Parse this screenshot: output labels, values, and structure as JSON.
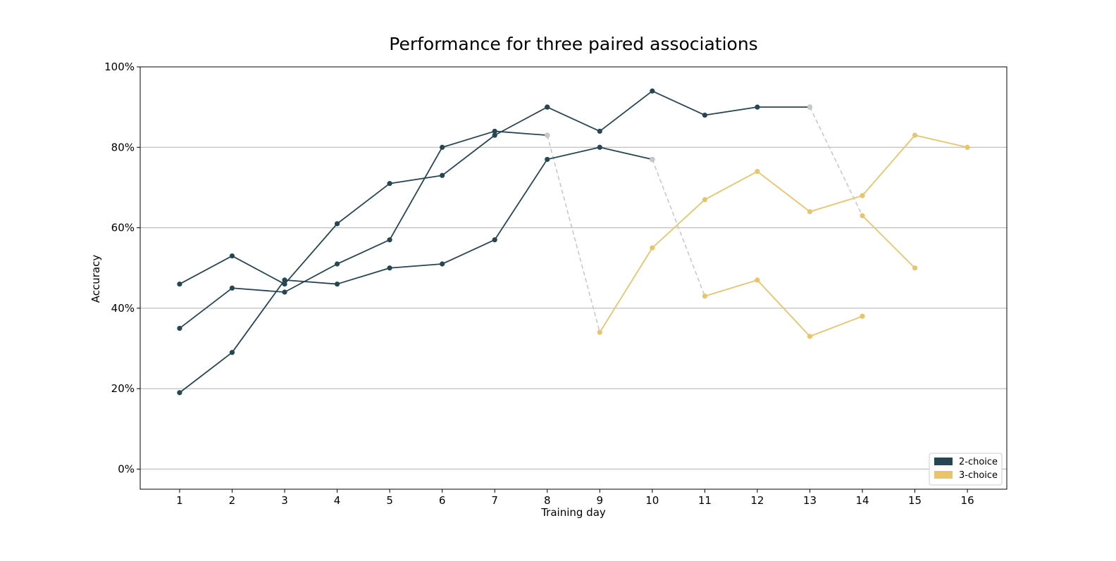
{
  "chart_data": {
    "type": "line",
    "title": "Performance for three paired associations",
    "xlabel": "Training day",
    "ylabel": "Accuracy",
    "xlim": [
      0.25,
      16.75
    ],
    "ylim": [
      -0.05,
      1.0
    ],
    "x_ticks": [
      1,
      2,
      3,
      4,
      5,
      6,
      7,
      8,
      9,
      10,
      11,
      12,
      13,
      14,
      15,
      16
    ],
    "x_tick_labels": [
      "1",
      "2",
      "3",
      "4",
      "5",
      "6",
      "7",
      "8",
      "9",
      "10",
      "11",
      "12",
      "13",
      "14",
      "15",
      "16"
    ],
    "y_ticks": [
      0,
      0.2,
      0.4,
      0.6,
      0.8,
      1.0
    ],
    "y_tick_labels": [
      "0%",
      "20%",
      "40%",
      "60%",
      "80%",
      "100%"
    ],
    "grid": "horizontal",
    "legend": {
      "position": "lower-right",
      "entries": [
        {
          "label": "2-choice",
          "color": "#264653"
        },
        {
          "label": "3-choice",
          "color": "#e9c46a"
        }
      ]
    },
    "colors": {
      "two_choice": "#264653",
      "three_choice": "#e9c46a",
      "transition": "#c8c8c8"
    },
    "series": [
      {
        "condition": "2-choice",
        "x": [
          1,
          2,
          3,
          4,
          5,
          6,
          7,
          8
        ],
        "y": [
          0.46,
          0.53,
          0.46,
          0.61,
          0.71,
          0.73,
          0.83,
          0.9
        ]
      },
      {
        "condition": "2-choice",
        "x": [
          1,
          2,
          3,
          4,
          5,
          6,
          7,
          8,
          9,
          10
        ],
        "y": [
          0.35,
          0.45,
          0.44,
          0.51,
          0.57,
          0.8,
          0.84,
          0.83,
          null,
          null
        ],
        "note_points": "ends day 8"
      },
      {
        "condition": "2-choice",
        "x": [
          1,
          2,
          3,
          4,
          5,
          6,
          7,
          8,
          9,
          10
        ],
        "y": [
          0.19,
          0.29,
          0.47,
          0.46,
          0.5,
          0.51,
          0.57,
          0.77,
          0.8,
          0.77
        ]
      },
      {
        "condition": "2-choice",
        "x": [
          8,
          9,
          10,
          11,
          12,
          13
        ],
        "y": [
          0.9,
          0.84,
          0.94,
          0.88,
          0.9,
          0.9
        ]
      },
      {
        "condition": "3-choice",
        "x": [
          9,
          10,
          11,
          12,
          13,
          14,
          15,
          16
        ],
        "y": [
          0.34,
          0.55,
          0.67,
          0.74,
          0.64,
          0.68,
          0.83,
          0.8
        ]
      },
      {
        "condition": "3-choice",
        "x": [
          11,
          12,
          13,
          14
        ],
        "y": [
          0.43,
          0.47,
          0.33,
          0.38
        ]
      },
      {
        "condition": "3-choice",
        "x": [
          14,
          15
        ],
        "y": [
          0.63,
          0.5
        ]
      }
    ],
    "transitions": [
      {
        "x": [
          8,
          9
        ],
        "y": [
          0.83,
          0.34
        ]
      },
      {
        "x": [
          10,
          11
        ],
        "y": [
          0.77,
          0.43
        ]
      },
      {
        "x": [
          13,
          14
        ],
        "y": [
          0.9,
          0.63
        ]
      }
    ]
  }
}
